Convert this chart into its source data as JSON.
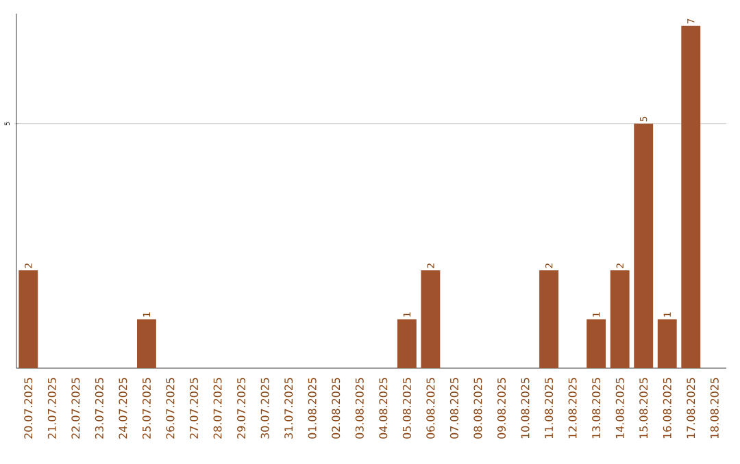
{
  "chart_data": {
    "type": "bar",
    "categories": [
      "20.07.2025",
      "21.07.2025",
      "22.07.2025",
      "23.07.2025",
      "24.07.2025",
      "25.07.2025",
      "26.07.2025",
      "27.07.2025",
      "28.07.2025",
      "29.07.2025",
      "30.07.2025",
      "31.07.2025",
      "01.08.2025",
      "02.08.2025",
      "03.08.2025",
      "04.08.2025",
      "05.08.2025",
      "06.08.2025",
      "07.08.2025",
      "08.08.2025",
      "09.08.2025",
      "10.08.2025",
      "11.08.2025",
      "12.08.2025",
      "13.08.2025",
      "14.08.2025",
      "15.08.2025",
      "16.08.2025",
      "17.08.2025",
      "18.08.2025"
    ],
    "values": [
      2,
      0,
      0,
      0,
      0,
      1,
      0,
      0,
      0,
      0,
      0,
      0,
      0,
      0,
      0,
      0,
      1,
      2,
      0,
      0,
      0,
      0,
      2,
      0,
      1,
      2,
      5,
      1,
      7,
      0
    ],
    "value_labels": [
      "2",
      null,
      null,
      null,
      null,
      "1",
      null,
      null,
      null,
      null,
      null,
      null,
      null,
      null,
      null,
      null,
      "1",
      "2",
      null,
      null,
      null,
      null,
      "2",
      null,
      "1",
      "2",
      "5",
      "1",
      "7",
      null
    ],
    "color": "#a0522d",
    "ylim": [
      0,
      7.25
    ],
    "yticks": [
      5
    ],
    "grid": "y"
  }
}
